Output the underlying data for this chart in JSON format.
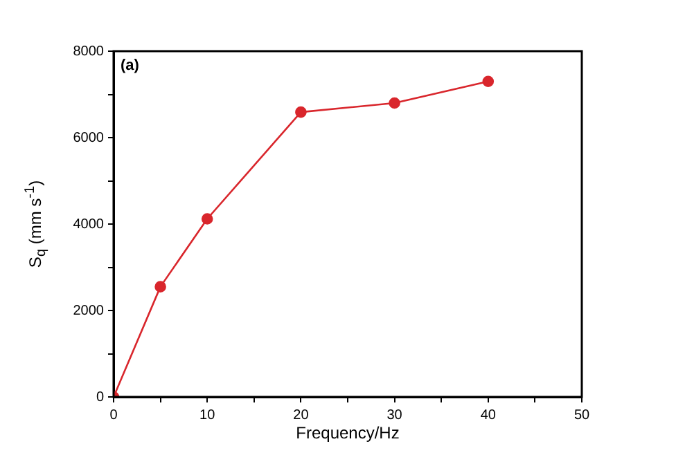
{
  "chart_data": {
    "type": "line",
    "xlabel": "Frequency/Hz",
    "ylabel": "S$_{q}$ (mm s$^{-1}$)",
    "annotations": [
      "(a)"
    ],
    "x": [
      0,
      5,
      10,
      20,
      30,
      40
    ],
    "series": [
      {
        "color": "#d9262c",
        "values": [
          0,
          2550,
          4120,
          6590,
          6800,
          7300
        ]
      }
    ],
    "xlim": [
      0,
      50
    ],
    "xticks": [
      0,
      {
        "value": 5,
        "label": null
      },
      10,
      {
        "value": 15,
        "label": null
      },
      20,
      {
        "value": 25,
        "label": null
      },
      30,
      {
        "value": 35,
        "label": null
      },
      40,
      {
        "value": 45,
        "label": null
      },
      50
    ],
    "ylim": [
      0,
      8000
    ],
    "yticks": [
      0,
      {
        "value": 1000,
        "label": null
      },
      2000,
      {
        "value": 3000,
        "label": null
      },
      4000,
      {
        "value": 5000,
        "label": null
      },
      6000,
      {
        "value": 7000,
        "label": null
      },
      8000
    ],
    "grid": false,
    "legend": false,
    "marker": "circle",
    "line_style": "solid"
  }
}
